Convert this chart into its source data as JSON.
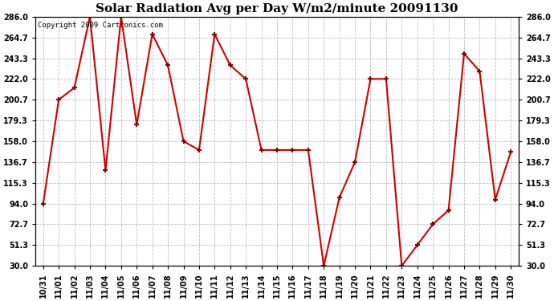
{
  "title": "Solar Radiation Avg per Day W/m2/minute 20091130",
  "copyright": "Copyright 2009 Cartronics.com",
  "x_labels": [
    "10/31",
    "11/01",
    "11/02",
    "11/03",
    "11/04",
    "11/05",
    "11/06",
    "11/07",
    "11/08",
    "11/09",
    "11/10",
    "11/11",
    "11/12",
    "11/13",
    "11/14",
    "11/15",
    "11/16",
    "11/17",
    "11/18",
    "11/19",
    "11/20",
    "11/21",
    "11/22",
    "11/23",
    "11/24",
    "11/25",
    "11/26",
    "11/27",
    "11/28",
    "11/29",
    "11/30"
  ],
  "y_values": [
    94.0,
    200.7,
    213.0,
    286.0,
    128.0,
    286.0,
    175.0,
    268.0,
    236.0,
    158.0,
    149.0,
    268.0,
    236.0,
    222.0,
    149.0,
    149.0,
    149.0,
    149.0,
    30.0,
    100.0,
    136.7,
    222.0,
    222.0,
    30.0,
    51.3,
    72.7,
    87.0,
    248.0,
    230.0,
    98.0,
    147.0
  ],
  "line_color": "#cc0000",
  "marker": "+",
  "marker_color": "#880000",
  "bg_color": "#ffffff",
  "grid_color": "#bbbbbb",
  "y_ticks": [
    30.0,
    51.3,
    72.7,
    94.0,
    115.3,
    136.7,
    158.0,
    179.3,
    200.7,
    222.0,
    243.3,
    264.7,
    286.0
  ],
  "y_min": 30.0,
  "y_max": 286.0,
  "title_fontsize": 11,
  "copyright_fontsize": 6.5
}
